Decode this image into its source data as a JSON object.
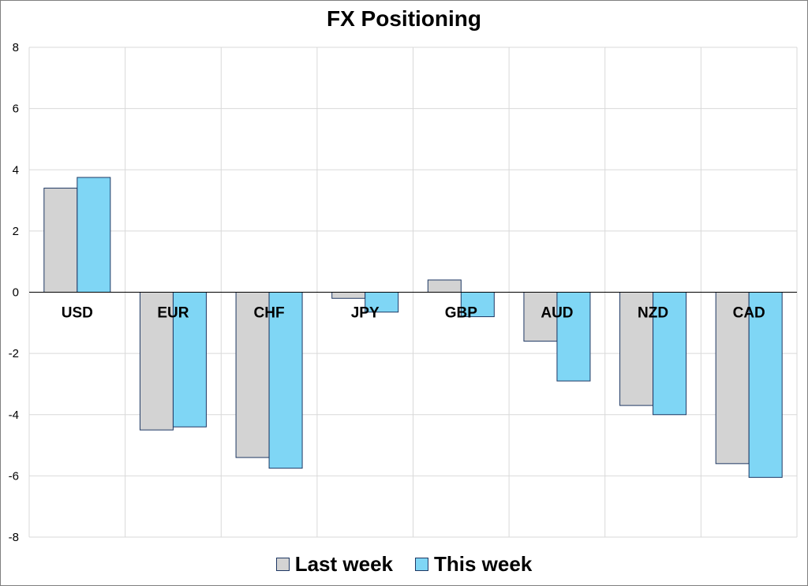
{
  "chart_data": {
    "type": "bar",
    "title": "FX Positioning",
    "categories": [
      "USD",
      "EUR",
      "CHF",
      "JPY",
      "GBP",
      "AUD",
      "NZD",
      "CAD"
    ],
    "series": [
      {
        "name": "Last week",
        "color": "#d3d3d3",
        "values": [
          3.4,
          -4.5,
          -5.4,
          -0.2,
          0.4,
          -1.6,
          -3.7,
          -5.6
        ]
      },
      {
        "name": "This week",
        "color": "#7fd6f5",
        "values": [
          3.75,
          -4.4,
          -5.75,
          -0.65,
          -0.8,
          -2.9,
          -4.0,
          -6.05
        ]
      }
    ],
    "ylim": [
      -8,
      8
    ],
    "yticks": [
      "8",
      "6",
      "4",
      "2",
      "0",
      "-2",
      "-4",
      "-6",
      "-8"
    ],
    "grid": true,
    "legend_position": "bottom"
  }
}
